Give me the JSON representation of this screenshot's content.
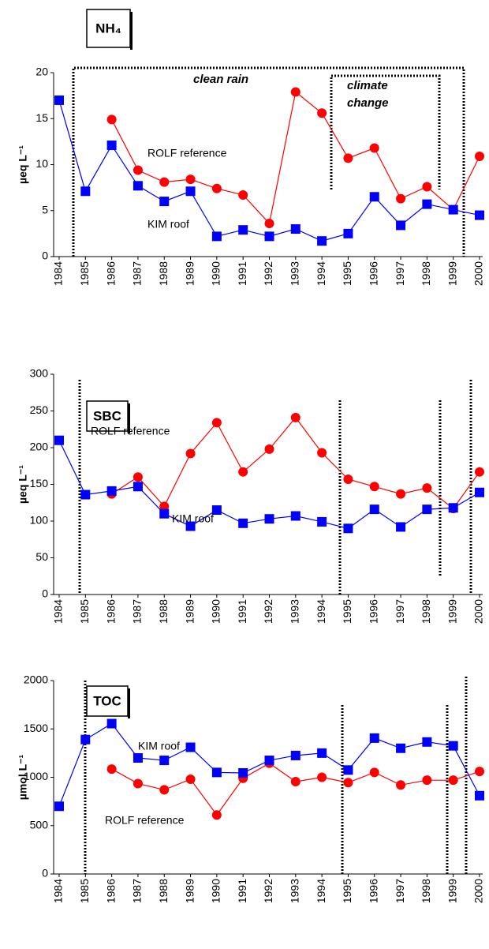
{
  "chart_data": [
    {
      "type": "line",
      "title": "NH₄",
      "y_label": "µeq L⁻¹",
      "categories": [
        "1984",
        "1985",
        "1986",
        "1987",
        "1988",
        "1989",
        "1990",
        "1991",
        "1992",
        "1993",
        "1994",
        "1995",
        "1996",
        "1997",
        "1998",
        "1999",
        "2000"
      ],
      "ylim": [
        0,
        20
      ],
      "yticks": [
        0,
        5,
        10,
        15,
        20
      ],
      "annotations": [
        "clean rain",
        "climate change"
      ],
      "series": [
        {
          "name": "ROLF reference",
          "color": "#ff0000",
          "marker": "circle",
          "values": [
            null,
            null,
            14.9,
            9.4,
            8.1,
            8.4,
            7.4,
            6.7,
            3.6,
            17.9,
            15.6,
            10.7,
            11.8,
            6.3,
            7.6,
            5.1,
            10.9
          ]
        },
        {
          "name": "KIM roof",
          "color": "#0000ff",
          "marker": "square",
          "values": [
            17,
            7.1,
            12.1,
            7.7,
            6.0,
            7.1,
            2.2,
            2.9,
            2.2,
            3.0,
            1.7,
            2.5,
            6.5,
            3.4,
            5.7,
            5.1,
            4.5
          ]
        }
      ]
    },
    {
      "type": "line",
      "title": "SBC",
      "y_label": "µeq L⁻¹",
      "categories": [
        "1984",
        "1985",
        "1986",
        "1987",
        "1988",
        "1989",
        "1990",
        "1991",
        "1992",
        "1993",
        "1994",
        "1995",
        "1996",
        "1997",
        "1998",
        "1999",
        "2000"
      ],
      "ylim": [
        0,
        300
      ],
      "yticks": [
        0,
        50,
        100,
        150,
        200,
        250,
        300
      ],
      "series": [
        {
          "name": "ROLF reference",
          "color": "#ff0000",
          "marker": "circle",
          "values": [
            null,
            null,
            137,
            160,
            120,
            192,
            234,
            167,
            198,
            241,
            193,
            157,
            147,
            137,
            145,
            117,
            167
          ]
        },
        {
          "name": "KIM roof",
          "color": "#0000ff",
          "marker": "square",
          "values": [
            210,
            136,
            141,
            147,
            110,
            93,
            115,
            97,
            103,
            107,
            99,
            90,
            116,
            92,
            116,
            118,
            139
          ]
        }
      ]
    },
    {
      "type": "line",
      "title": "TOC",
      "y_label": "µmol L⁻¹",
      "categories": [
        "1984",
        "1985",
        "1986",
        "1987",
        "1988",
        "1989",
        "1990",
        "1991",
        "1992",
        "1993",
        "1994",
        "1995",
        "1996",
        "1997",
        "1998",
        "1999",
        "2000"
      ],
      "ylim": [
        0,
        2000
      ],
      "yticks": [
        0,
        500,
        1000,
        1500,
        2000
      ],
      "series": [
        {
          "name": "ROLF reference",
          "color": "#ff0000",
          "marker": "circle",
          "values": [
            null,
            null,
            1085,
            935,
            870,
            980,
            610,
            990,
            1145,
            955,
            1000,
            945,
            1050,
            920,
            970,
            970,
            1060
          ]
        },
        {
          "name": "KIM roof",
          "color": "#0000ff",
          "marker": "square",
          "values": [
            700,
            1390,
            1555,
            1200,
            1175,
            1310,
            1050,
            1045,
            1175,
            1225,
            1250,
            1075,
            1405,
            1300,
            1365,
            1325,
            810
          ]
        }
      ]
    }
  ]
}
